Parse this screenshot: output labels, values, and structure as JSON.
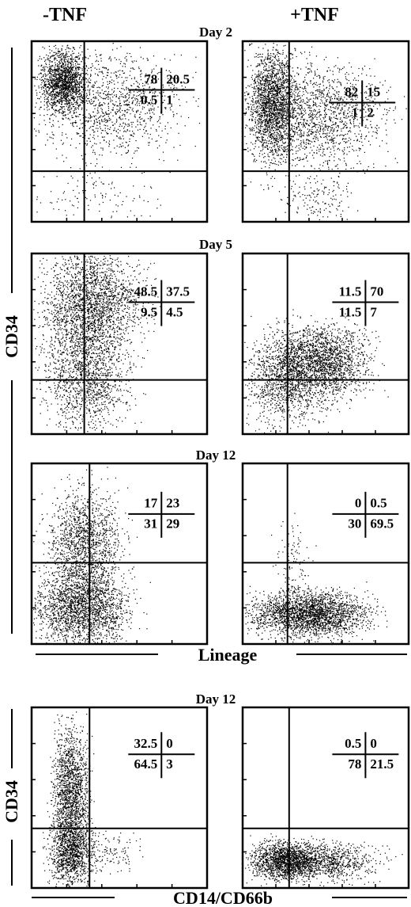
{
  "header": {
    "left": "-TNF",
    "right": "+TNF"
  },
  "y_label": "CD34",
  "x_label": "Lineage",
  "y_label_bottom": "CD34",
  "x_label_bottom": "CD14/CD66b",
  "rows": [
    {
      "day": "Day 2",
      "left": [
        78,
        20.5,
        0.5,
        1
      ],
      "right": [
        82,
        15,
        1,
        2
      ]
    },
    {
      "day": "Day 5",
      "left": [
        48.5,
        37.5,
        9.5,
        4.5
      ],
      "right": [
        11.5,
        70,
        11.5,
        7
      ]
    },
    {
      "day": "Day 12",
      "left": [
        17,
        23,
        31,
        29
      ],
      "right": [
        0,
        0.5,
        30,
        69.5
      ]
    },
    {
      "day": "Day 12",
      "left": [
        32.5,
        0,
        64.5,
        3
      ],
      "right": [
        0.5,
        0,
        78,
        21.5
      ]
    }
  ]
}
